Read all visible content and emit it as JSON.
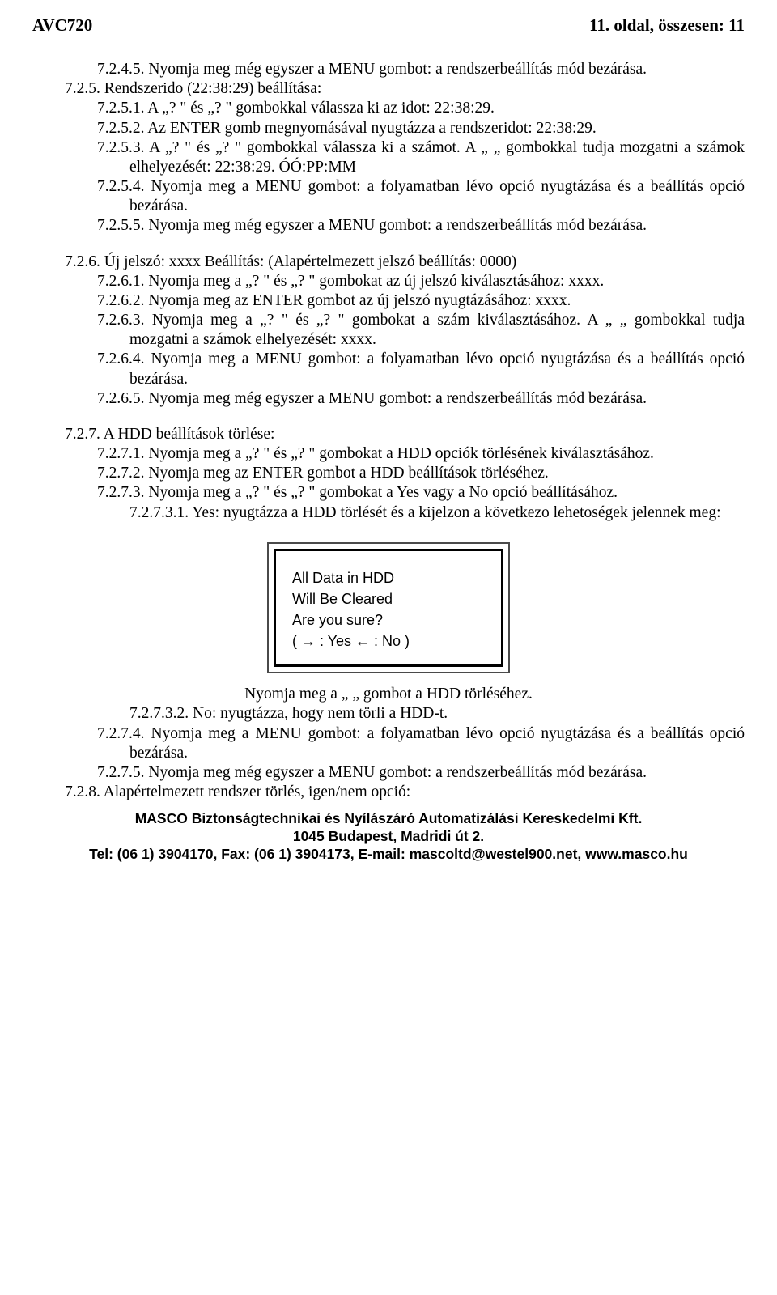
{
  "header": {
    "left": "AVC720",
    "right": "11. oldal, összesen: 11"
  },
  "p": {
    "s7245": "7.2.4.5.   Nyomja meg még egyszer a MENU gombot: a rendszerbeállítás mód bezárása.",
    "s725": "7.2.5. Rendszerido (22:38:29) beállítása:",
    "s7251": "7.2.5.1.   A „? \" és „? \" gombokkal válassza ki az idot: 22:38:29.",
    "s7252": "7.2.5.2.   Az ENTER gomb megnyomásával nyugtázza a rendszeridot: 22:38:29.",
    "s7253": "7.2.5.3.   A „? \" és „? \" gombokkal válassza ki a számot. A „ „ gombokkal tudja mozgatni a számok elhelyezését: 22:38:29. ÓÓ:PP:MM",
    "s7254": "7.2.5.4.   Nyomja meg a MENU gombot: a folyamatban lévo opció nyugtázása és a beállítás opció bezárása.",
    "s7255": "7.2.5.5.   Nyomja meg még egyszer a MENU gombot: a rendszerbeállítás mód bezárása.",
    "s726": "7.2.6. Új jelszó: xxxx Beállítás: (Alapértelmezett jelszó beállítás: 0000)",
    "s7261": "7.2.6.1.   Nyomja meg a „? \" és „? \" gombokat az új jelszó kiválasztásához: xxxx.",
    "s7262": "7.2.6.2.   Nyomja meg az ENTER gombot az új jelszó nyugtázásához: xxxx.",
    "s7263": "7.2.6.3.   Nyomja meg a „? \" és „? \" gombokat a szám kiválasztásához. A „ „ gombokkal tudja mozgatni a számok elhelyezését: xxxx.",
    "s7264": "7.2.6.4.   Nyomja meg a MENU gombot: a folyamatban lévo opció nyugtázása és a beállítás opció bezárása.",
    "s7265": "7.2.6.5.   Nyomja meg még egyszer a MENU gombot: a rendszerbeállítás mód bezárása.",
    "s727": "7.2.7. A HDD beállítások törlése:",
    "s7271": "7.2.7.1.   Nyomja meg a „? \" és „? \" gombokat a HDD opciók törlésének kiválasztásához.",
    "s7272": "7.2.7.2.   Nyomja meg az ENTER gombot a HDD beállítások törléséhez.",
    "s7273": "7.2.7.3.   Nyomja meg a „? \" és „? \" gombokat a Yes vagy a No opció beállításához.",
    "s72731": "7.2.7.3.1. Yes: nyugtázza a HDD törlését és a kijelzon a következo lehetoségek jelennek meg:",
    "dialog_l1": "All Data in HDD",
    "dialog_l2": "Will Be Cleared",
    "dialog_l3": "Are you sure?",
    "dialog_l4": "(  →  : Yes   ←  : No   )",
    "caption": "Nyomja meg a „ „ gombot a HDD törléséhez.",
    "s72732": "7.2.7.3.2. No: nyugtázza, hogy nem törli a HDD-t.",
    "s7274": "7.2.7.4.   Nyomja meg a MENU gombot: a folyamatban lévo opció nyugtázása és a beállítás opció bezárása.",
    "s7275": "7.2.7.5.   Nyomja meg még egyszer a MENU gombot: a rendszerbeállítás mód bezárása.",
    "s728": "7.2.8. Alapértelmezett rendszer törlés, igen/nem opció:"
  },
  "footer": {
    "l1": "MASCO Biztonságtechnikai és Nyílászáró Automatizálási Kereskedelmi Kft.",
    "l2": "1045 Budapest, Madridi út 2.",
    "l3": "Tel: (06 1) 3904170, Fax: (06 1) 3904173, E-mail: mascoltd@westel900.net, www.masco.hu"
  }
}
